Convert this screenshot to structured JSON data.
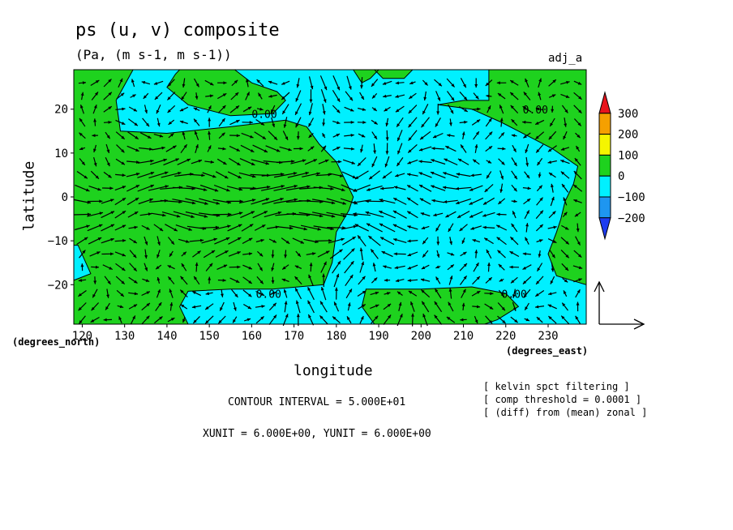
{
  "chart_data": {
    "type": "heatmap",
    "title": "ps (u, v) composite",
    "subtitle": "(Pa, (m s-1, m s-1))",
    "tag": "adj_a",
    "xlabel": "longitude",
    "ylabel": "latitude",
    "x_unit_note": "(degrees_east)",
    "y_unit_note": "(degrees_north)",
    "xlim": [
      118,
      239
    ],
    "ylim": [
      -29,
      29
    ],
    "x_ticks": [
      120,
      130,
      140,
      150,
      160,
      170,
      180,
      190,
      200,
      210,
      220,
      230
    ],
    "y_ticks": [
      -20,
      -10,
      0,
      10,
      20
    ],
    "colorbar": {
      "labels": [
        "300",
        "200",
        "100",
        "0",
        "−100",
        "−200"
      ],
      "colors": [
        "#e8141c",
        "#f5a000",
        "#f5f500",
        "#1ed21e",
        "#00f0ff",
        "#1e96f0",
        "#1e3cf0"
      ]
    },
    "contour_labels": [
      {
        "text": "0.00",
        "lon": 163,
        "lat": 18
      },
      {
        "text": "0.00",
        "lon": 227,
        "lat": 19
      },
      {
        "text": "0.00",
        "lon": 164,
        "lat": -23
      },
      {
        "text": "0.00",
        "lon": 222,
        "lat": -23
      }
    ],
    "footer": {
      "contour_interval": "CONTOUR INTERVAL = 5.000E+01",
      "units": "XUNIT = 6.000E+00, YUNIT = 6.000E+00"
    },
    "notes": [
      "[ kelvin spct filtering ]",
      "[ comp threshold = 0.0001 ]",
      "[ (diff) from (mean) zonal ]"
    ],
    "regions_positive": [
      [
        [
          118,
          29
        ],
        [
          132,
          29
        ],
        [
          128,
          22
        ],
        [
          129,
          15
        ],
        [
          140,
          14.5
        ],
        [
          155,
          16
        ],
        [
          168,
          17.5
        ],
        [
          173,
          16
        ],
        [
          176,
          12
        ],
        [
          180,
          8
        ],
        [
          183,
          2
        ],
        [
          184,
          0
        ],
        [
          183,
          -3
        ],
        [
          180,
          -8
        ],
        [
          179,
          -15
        ],
        [
          177,
          -20
        ],
        [
          165,
          -21
        ],
        [
          155,
          -21
        ],
        [
          145,
          -21.5
        ],
        [
          143,
          -25
        ],
        [
          145,
          -29
        ],
        [
          118,
          -29
        ],
        [
          118,
          -19
        ],
        [
          122,
          -17.5
        ],
        [
          119,
          -11
        ],
        [
          118,
          -11
        ]
      ],
      [
        [
          143,
          29
        ],
        [
          156,
          29
        ],
        [
          160,
          26
        ],
        [
          166,
          24
        ],
        [
          168,
          22
        ],
        [
          165,
          19
        ],
        [
          155,
          18.5
        ],
        [
          145,
          21
        ],
        [
          140,
          25
        ],
        [
          142,
          28
        ]
      ],
      [
        [
          184,
          29
        ],
        [
          190,
          29
        ],
        [
          188,
          27
        ],
        [
          186,
          26
        ]
      ],
      [
        [
          189,
          29
        ],
        [
          198,
          29
        ],
        [
          196,
          27
        ],
        [
          191,
          27
        ]
      ],
      [
        [
          204,
          21
        ],
        [
          210,
          22
        ],
        [
          216,
          22
        ],
        [
          216,
          29
        ],
        [
          239,
          29
        ],
        [
          239,
          -20
        ],
        [
          232,
          -18
        ],
        [
          230,
          -13
        ],
        [
          232,
          -8
        ],
        [
          233,
          -5
        ],
        [
          234,
          -1
        ],
        [
          236,
          3
        ],
        [
          237,
          7
        ],
        [
          231,
          11
        ],
        [
          225,
          14
        ],
        [
          219,
          17
        ],
        [
          212,
          20
        ]
      ],
      [
        [
          187,
          -21
        ],
        [
          200,
          -21
        ],
        [
          212,
          -20.5
        ],
        [
          220,
          -22
        ],
        [
          223,
          -25
        ],
        [
          218,
          -28
        ],
        [
          215,
          -29
        ],
        [
          189,
          -29
        ],
        [
          186,
          -25
        ]
      ]
    ]
  }
}
